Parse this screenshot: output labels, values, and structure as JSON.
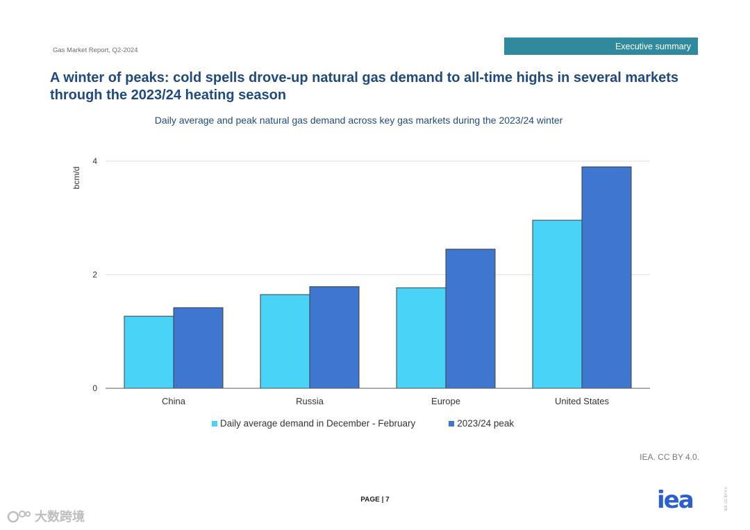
{
  "header": {
    "report_name": "Gas Market Report, Q2-2024",
    "section_tag": "Executive summary"
  },
  "page_title": "A winter of peaks: cold spells drove-up natural gas demand to all-time highs in several markets through the 2023/24 heating season",
  "chart_data": {
    "type": "bar",
    "title": "Daily average and peak natural gas demand across key gas markets during the 2023/24 winter",
    "ylabel": "bcm/d",
    "xlabel": "",
    "ylim": [
      0,
      4
    ],
    "yticks": [
      0,
      2,
      4
    ],
    "grid": true,
    "categories": [
      "China",
      "Russia",
      "Europe",
      "United States"
    ],
    "series": [
      {
        "name": "Daily average demand in December - February",
        "color": "#48d3f7",
        "values": [
          1.27,
          1.65,
          1.77,
          2.96
        ]
      },
      {
        "name": "2023/24 peak",
        "color": "#3f76cf",
        "values": [
          1.42,
          1.79,
          2.45,
          3.9
        ]
      }
    ],
    "legend_position": "bottom"
  },
  "credit": "IEA. CC BY 4.0.",
  "footer": {
    "page_number": "PAGE | 7",
    "logo_text": "iea",
    "side_license": "IEA. CC BY 4.0.",
    "watermark_text": "大数跨境"
  }
}
